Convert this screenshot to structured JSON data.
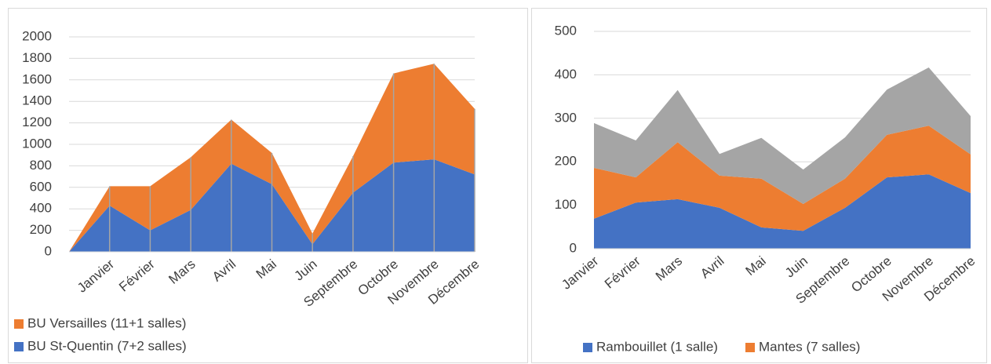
{
  "chart_data": [
    {
      "type": "stacked-area",
      "categories": [
        null,
        "Janvier",
        "Février",
        "Mars",
        "Avril",
        "Mai",
        "Juin",
        "Septembre",
        "Octobre",
        "Novembre",
        "Décembre"
      ],
      "series": [
        {
          "name": "BU St-Quentin (7+2 salles)",
          "color": "#4472c4",
          "values": [
            0,
            430,
            200,
            390,
            820,
            630,
            70,
            550,
            830,
            860,
            720
          ]
        },
        {
          "name": "BU Versailles (11+1 salles)",
          "color": "#ed7d31",
          "values": [
            0,
            180,
            410,
            490,
            410,
            290,
            100,
            340,
            830,
            890,
            610
          ]
        }
      ],
      "ylim": [
        0,
        2000
      ],
      "yticks": [
        0,
        200,
        400,
        600,
        800,
        1000,
        1200,
        1400,
        1600,
        1800,
        2000
      ],
      "grid": true,
      "drop_lines": true,
      "legend": "bottom-left"
    },
    {
      "type": "stacked-area",
      "categories": [
        "Janvier",
        "Février",
        "Mars",
        "Avril",
        "Mai",
        "Juin",
        "Septembre",
        "Octobre",
        "Novembre",
        "Décembre"
      ],
      "series": [
        {
          "name": "Rambouillet (1 salle)",
          "color": "#4472c4",
          "values": [
            69,
            106,
            114,
            94,
            49,
            41,
            94,
            164,
            171,
            128
          ]
        },
        {
          "name": "Mantes (7 salles)",
          "color": "#ed7d31",
          "values": [
            117,
            58,
            131,
            74,
            112,
            62,
            67,
            98,
            112,
            89
          ]
        },
        {
          "color": "#a5a5a5",
          "values": [
            103,
            85,
            120,
            50,
            94,
            79,
            95,
            104,
            134,
            88
          ]
        }
      ],
      "ylim": [
        0,
        500
      ],
      "yticks": [
        0,
        100,
        200,
        300,
        400,
        500
      ],
      "grid": true,
      "drop_lines": false,
      "legend": "bottom"
    }
  ]
}
